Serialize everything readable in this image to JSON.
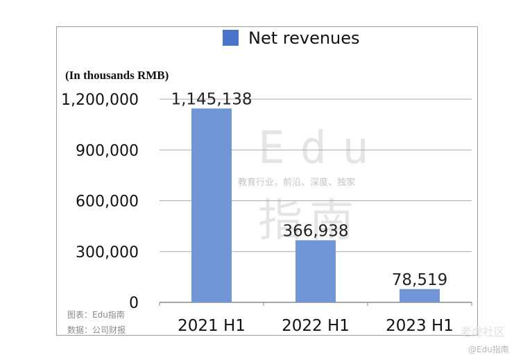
{
  "chart_data": {
    "type": "bar",
    "categories": [
      "2021 H1",
      "2022 H1",
      "2023 H1"
    ],
    "series": [
      {
        "name": "Net revenues",
        "values": [
          1145138,
          366938,
          78519
        ]
      }
    ],
    "data_labels": [
      "1,145,138",
      "366,938",
      "78,519"
    ],
    "ylabel": "(In thousands RMB)",
    "ylim": [
      0,
      1200000
    ],
    "yticks": [
      0,
      300000,
      600000,
      900000,
      1200000
    ],
    "ytick_labels": [
      "0",
      "300,000",
      "600,000",
      "900,000",
      "1,200,000"
    ],
    "grid": true,
    "legend_position": "top",
    "bar_color": "#7196D6",
    "legend_color": "#4A74C9"
  },
  "watermark": {
    "brand": "Edu",
    "brand_cn": "指南",
    "tagline": "教育行业，前沿、深度、独家"
  },
  "source": {
    "line1": "图表：Edu指南",
    "line2": "数据：公司财报"
  },
  "footer": {
    "site": "老虎社区",
    "handle": "@Edu指南"
  }
}
